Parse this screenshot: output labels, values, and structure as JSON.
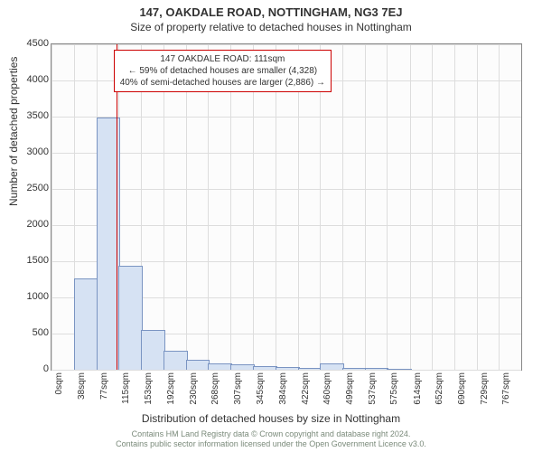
{
  "title": "147, OAKDALE ROAD, NOTTINGHAM, NG3 7EJ",
  "subtitle": "Size of property relative to detached houses in Nottingham",
  "chart": {
    "type": "histogram",
    "ylim": [
      0,
      4500
    ],
    "ytick_step": 500,
    "yticks": [
      0,
      500,
      1000,
      1500,
      2000,
      2500,
      3000,
      3500,
      4000,
      4500
    ],
    "xlim": [
      0,
      805
    ],
    "xticks": [
      0,
      38,
      77,
      115,
      153,
      192,
      230,
      268,
      307,
      345,
      384,
      422,
      460,
      499,
      537,
      575,
      614,
      652,
      690,
      729,
      767
    ],
    "xtick_labels": [
      "0sqm",
      "38sqm",
      "77sqm",
      "115sqm",
      "153sqm",
      "192sqm",
      "230sqm",
      "268sqm",
      "307sqm",
      "345sqm",
      "384sqm",
      "422sqm",
      "460sqm",
      "499sqm",
      "537sqm",
      "575sqm",
      "614sqm",
      "652sqm",
      "690sqm",
      "729sqm",
      "767sqm"
    ],
    "bars": [
      {
        "x0": 38,
        "x1": 77,
        "value": 1250
      },
      {
        "x0": 77,
        "x1": 115,
        "value": 3480
      },
      {
        "x0": 115,
        "x1": 153,
        "value": 1420
      },
      {
        "x0": 153,
        "x1": 192,
        "value": 540
      },
      {
        "x0": 192,
        "x1": 230,
        "value": 250
      },
      {
        "x0": 230,
        "x1": 268,
        "value": 130
      },
      {
        "x0": 268,
        "x1": 307,
        "value": 80
      },
      {
        "x0": 307,
        "x1": 345,
        "value": 60
      },
      {
        "x0": 345,
        "x1": 384,
        "value": 40
      },
      {
        "x0": 384,
        "x1": 422,
        "value": 25
      },
      {
        "x0": 422,
        "x1": 460,
        "value": 10
      },
      {
        "x0": 460,
        "x1": 499,
        "value": 70
      },
      {
        "x0": 499,
        "x1": 537,
        "value": 10
      },
      {
        "x0": 537,
        "x1": 575,
        "value": 8
      },
      {
        "x0": 575,
        "x1": 614,
        "value": 6
      }
    ],
    "bar_fill": "#d6e2f3",
    "bar_stroke": "#7a94c2",
    "background_color": "#fcfcfc",
    "grid_color": "#dddddd",
    "axis_color": "#888888",
    "ylabel": "Number of detached properties",
    "xlabel": "Distribution of detached houses by size in Nottingham",
    "label_fontsize": 12,
    "marker": {
      "x": 111,
      "color": "#cc0000"
    },
    "annotation": {
      "line1": "147 OAKDALE ROAD: 111sqm",
      "line2": "← 59% of detached houses are smaller (4,328)",
      "line3": "40% of semi-detached houses are larger (2,886) →",
      "border_color": "#cc0000"
    }
  },
  "footer": {
    "line1": "Contains HM Land Registry data © Crown copyright and database right 2024.",
    "line2": "Contains public sector information licensed under the Open Government Licence v3.0."
  }
}
